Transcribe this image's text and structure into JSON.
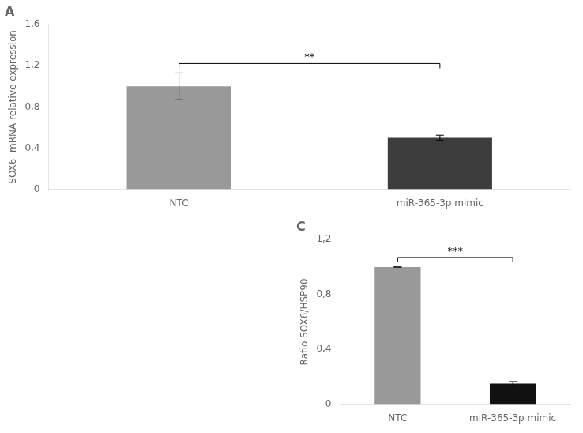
{
  "chart_data": [
    {
      "type": "bar",
      "title": "A",
      "categories": [
        "NTC",
        "miR-365-3p mimic"
      ],
      "values": [
        1.0,
        0.5
      ],
      "errors": [
        0.13,
        0.025
      ],
      "colors": [
        "#999999",
        "#3d3d3d"
      ],
      "y_label": "SOX6  mRNA relative expression",
      "ylim": [
        0,
        1.6
      ],
      "yticks": [
        0,
        {
          "value": 0.4,
          "label": "0,4"
        },
        {
          "value": 0.8,
          "label": "0,8"
        },
        {
          "value": 1.2,
          "label": "1,2"
        },
        {
          "value": 1.6,
          "label": "1,6"
        }
      ],
      "annotations": [
        "**"
      ],
      "grid": false
    },
    {
      "type": "bar",
      "title": "C",
      "categories": [
        "NTC",
        "miR-365-3p mimic"
      ],
      "values": [
        1.0,
        0.15
      ],
      "errors": [
        0.0,
        0.015
      ],
      "colors": [
        "#999999",
        "#111111"
      ],
      "y_label": "Ratio SOX6/HSP90",
      "ylim": [
        0,
        1.2
      ],
      "yticks": [
        0,
        {
          "value": 0.4,
          "label": "0,4"
        },
        {
          "value": 0.8,
          "label": "0,8"
        },
        {
          "value": 1.2,
          "label": "1,2"
        }
      ],
      "annotations": [
        "***"
      ],
      "grid": false
    }
  ]
}
